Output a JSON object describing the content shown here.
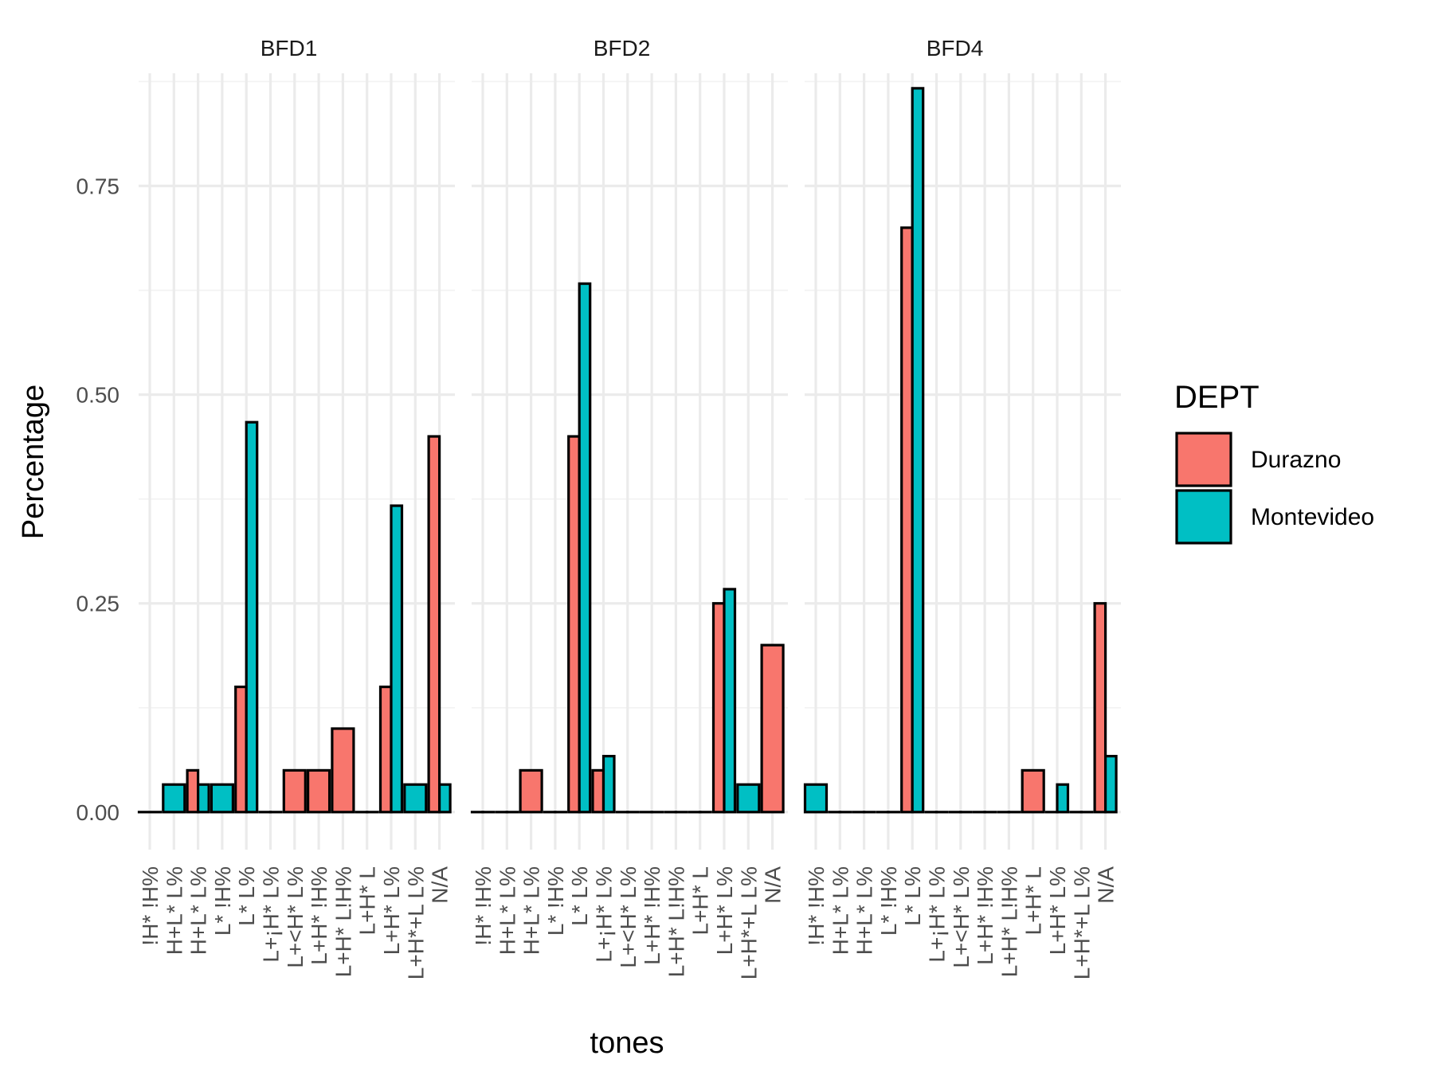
{
  "chart_data": {
    "type": "bar",
    "xlabel": "tones",
    "ylabel": "Percentage",
    "ylim": [
      -0.045,
      0.885
    ],
    "yticks": [
      0.0,
      0.25,
      0.5,
      0.75
    ],
    "ytick_labels": [
      "0.00",
      "0.25",
      "0.50",
      "0.75"
    ],
    "grid": true,
    "legend": {
      "title": "DEPT",
      "placement": "right",
      "entries": [
        {
          "name": "Durazno",
          "color": "#F8766D"
        },
        {
          "name": "Montevideo",
          "color": "#00BFC4"
        }
      ]
    },
    "categories": [
      "!H* !H%",
      "H+L* L%",
      "H+L* L%",
      "L* !H%",
      "L* L%",
      "L+¡H* L%",
      "L+<H* L%",
      "L+H* !H%",
      "L+H* L!H%",
      "L+H* L",
      "L+H* L%",
      "L+H*+L L%",
      "N/A"
    ],
    "panels": [
      {
        "title": "BFD1",
        "series": [
          {
            "name": "Durazno",
            "values": [
              0,
              null,
              0.05,
              null,
              0.15,
              0,
              0.05,
              0.05,
              0.1,
              0,
              0.15,
              null,
              0.45
            ]
          },
          {
            "name": "Montevideo",
            "values": [
              null,
              0.033,
              0.033,
              0.033,
              0.467,
              0,
              null,
              null,
              null,
              0,
              0.367,
              0.033,
              0.033
            ]
          }
        ]
      },
      {
        "title": "BFD2",
        "series": [
          {
            "name": "Durazno",
            "values": [
              0,
              0,
              0.05,
              0,
              0.45,
              0.05,
              0,
              0,
              0,
              0,
              0.25,
              null,
              0.2
            ]
          },
          {
            "name": "Montevideo",
            "values": [
              0,
              0,
              null,
              0,
              0.633,
              0.067,
              0,
              0,
              0,
              0,
              0.267,
              0.033,
              null
            ]
          }
        ]
      },
      {
        "title": "BFD4",
        "series": [
          {
            "name": "Durazno",
            "values": [
              null,
              0,
              0,
              0,
              0.7,
              0,
              0,
              0,
              0,
              0.05,
              0,
              0,
              0.25
            ]
          },
          {
            "name": "Montevideo",
            "values": [
              0.033,
              0,
              0,
              0,
              0.867,
              0,
              0,
              0,
              0,
              null,
              0.033,
              0,
              0.067
            ]
          }
        ]
      }
    ]
  }
}
